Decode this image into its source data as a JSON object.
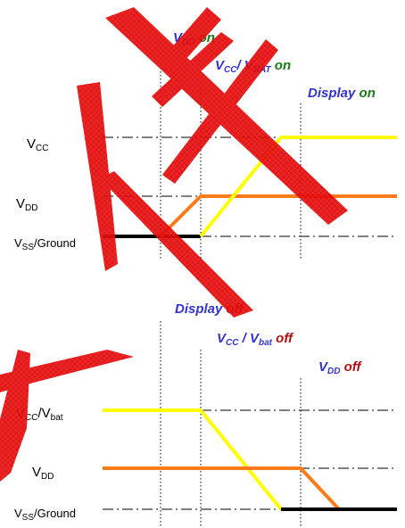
{
  "colors": {
    "vdd_trace": "#ff7a1a",
    "vcc_trace": "#ffff00",
    "ground_trace": "#000000",
    "event_name": "#3333cc",
    "event_on": "#1a7a1a",
    "event_off": "#b01010",
    "watermark": "#ee1111"
  },
  "power_on": {
    "events": [
      {
        "main": "V",
        "sub": "DD",
        "state": "on"
      },
      {
        "main": "V",
        "sub": "CC",
        "rest": "/ V",
        "sub2": "BAT",
        "state": "on"
      },
      {
        "main": "Display",
        "state": "on"
      }
    ],
    "rails": {
      "vcc": {
        "main": "V",
        "sub": "CC"
      },
      "vdd": {
        "main": "V",
        "sub": "DD"
      },
      "vss": {
        "main": "V",
        "sub": "SS",
        "rest": "/Ground"
      }
    }
  },
  "power_off": {
    "events": [
      {
        "main": "Display",
        "state": "off"
      },
      {
        "main": "V",
        "sub": "CC",
        "rest": " / V",
        "sub2": "bat",
        "state": "off"
      },
      {
        "main": "V",
        "sub": "DD",
        "state": "off"
      }
    ],
    "rails": {
      "vcc": {
        "main": "V",
        "sub": "CC",
        "rest": "/V",
        "sub2": "bat"
      },
      "vdd": {
        "main": "V",
        "sub": "DD"
      },
      "vss": {
        "main": "V",
        "sub": "SS",
        "rest": "/Ground"
      }
    }
  }
}
